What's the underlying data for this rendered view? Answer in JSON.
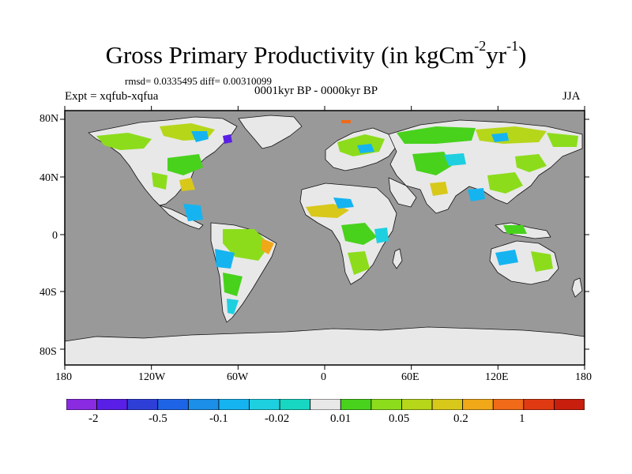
{
  "title": {
    "main": "Gross Primary Productivity (in kgCm",
    "exp1": "-2",
    "mid": "yr",
    "exp2": "-1",
    "close": ")"
  },
  "stats": "rmsd= 0.0335495 diff= 0.00310099",
  "experiment": "Expt = xqfub-xqfua",
  "period": "0001kyr BP - 0000kyr BP",
  "season": "JJA",
  "axes": {
    "lat_labels": [
      "80N",
      "40N",
      "0",
      "40S",
      "80S"
    ],
    "lon_labels": [
      "180",
      "120W",
      "60W",
      "0",
      "60E",
      "120E",
      "180"
    ]
  },
  "colors": {
    "ocean": "#999999",
    "land_nodata": "#e8e8e8"
  },
  "colorbar": {
    "colors": [
      "#8a2be2",
      "#5a1fe6",
      "#2e3fd8",
      "#1e64e6",
      "#1c8fe8",
      "#15b4f0",
      "#1ecfe0",
      "#17d6c2",
      "#e8e8e8",
      "#48d21c",
      "#8cdc1c",
      "#b6d61a",
      "#d8c81a",
      "#f0a818",
      "#f06a18",
      "#e03a12",
      "#c81e0e"
    ],
    "labels": [
      "-2",
      "-0.5",
      "-0.1",
      "-0.02",
      "0.01",
      "0.05",
      "0.2",
      "1"
    ]
  }
}
